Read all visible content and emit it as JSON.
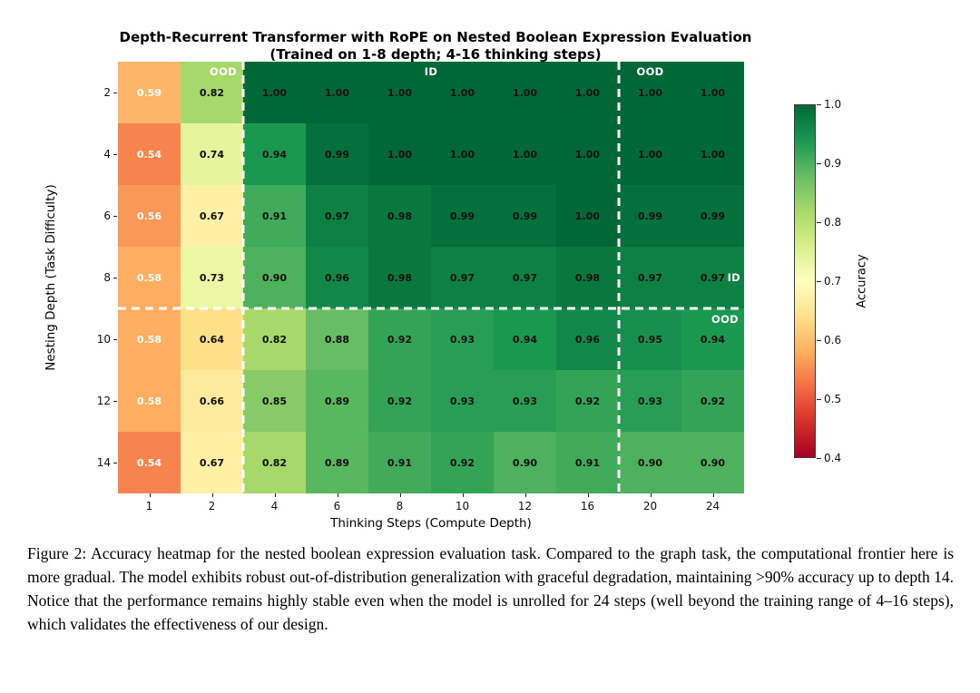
{
  "chart_data": {
    "type": "heatmap",
    "title": "Depth-Recurrent Transformer with RoPE on Nested Boolean Expression Evaluation",
    "subtitle": "(Trained on 1-8 depth; 4-16 thinking steps)",
    "xlabel": "Thinking Steps (Compute Depth)",
    "ylabel": "Nesting Depth (Task Difficulty)",
    "x_categories": [
      "1",
      "2",
      "4",
      "6",
      "8",
      "10",
      "12",
      "16",
      "20",
      "24"
    ],
    "y_categories": [
      "2",
      "4",
      "6",
      "8",
      "10",
      "12",
      "14"
    ],
    "values": [
      [
        0.59,
        0.82,
        1.0,
        1.0,
        1.0,
        1.0,
        1.0,
        1.0,
        1.0,
        1.0
      ],
      [
        0.54,
        0.74,
        0.94,
        0.99,
        1.0,
        1.0,
        1.0,
        1.0,
        1.0,
        1.0
      ],
      [
        0.56,
        0.67,
        0.91,
        0.97,
        0.98,
        0.99,
        0.99,
        1.0,
        0.99,
        0.99
      ],
      [
        0.58,
        0.73,
        0.9,
        0.96,
        0.98,
        0.97,
        0.97,
        0.98,
        0.97,
        0.97
      ],
      [
        0.58,
        0.64,
        0.82,
        0.88,
        0.92,
        0.93,
        0.94,
        0.96,
        0.95,
        0.94
      ],
      [
        0.58,
        0.66,
        0.85,
        0.89,
        0.92,
        0.93,
        0.93,
        0.92,
        0.93,
        0.92
      ],
      [
        0.54,
        0.67,
        0.82,
        0.89,
        0.91,
        0.92,
        0.9,
        0.91,
        0.9,
        0.9
      ]
    ],
    "vmin": 0.4,
    "vmax": 1.0,
    "colormap": "RdYlGn",
    "colormap_anchors": [
      "#a50026",
      "#d73027",
      "#f46d43",
      "#fdae61",
      "#fee08b",
      "#ffffbf",
      "#d9ef8b",
      "#a6d96a",
      "#66bd63",
      "#1a9850",
      "#006837"
    ],
    "white_text_below": 0.6,
    "grid": false,
    "colorbar": {
      "label": "Accuracy",
      "ticks": [
        "1.0",
        "0.9",
        "0.8",
        "0.7",
        "0.6",
        "0.5",
        "0.4"
      ]
    },
    "region_labels": [
      {
        "text": "OOD",
        "position": "top-ood-left"
      },
      {
        "text": "ID",
        "position": "top-id"
      },
      {
        "text": "OOD",
        "position": "top-ood-right"
      },
      {
        "text": "ID",
        "position": "right-id"
      },
      {
        "text": "OOD",
        "position": "right-ood"
      }
    ],
    "dashed_lines": {
      "vertical_after_col": [
        2,
        8
      ],
      "horizontal_after_row": [
        4
      ]
    }
  },
  "caption": {
    "label": "Figure 2:",
    "text": "Accuracy heatmap for the nested boolean expression evaluation task. Compared to the graph task, the computational frontier here is more gradual. The model exhibits robust out-of-distribution generalization with graceful degradation, maintaining >90% accuracy up to depth 14. Notice that the performance remains highly stable even when the model is unrolled for 24 steps (well beyond the training range of 4–16 steps), which validates the effectiveness of our design."
  }
}
